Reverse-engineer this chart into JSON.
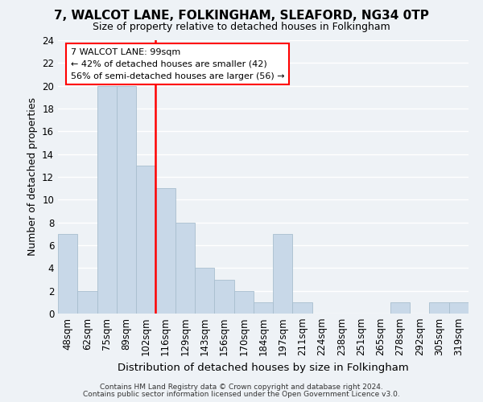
{
  "title": "7, WALCOT LANE, FOLKINGHAM, SLEAFORD, NG34 0TP",
  "subtitle": "Size of property relative to detached houses in Folkingham",
  "xlabel": "Distribution of detached houses by size in Folkingham",
  "ylabel": "Number of detached properties",
  "bar_color": "#c8d8e8",
  "bar_edge_color": "#a8bece",
  "vline_color": "red",
  "bin_labels": [
    "48sqm",
    "62sqm",
    "75sqm",
    "89sqm",
    "102sqm",
    "116sqm",
    "129sqm",
    "143sqm",
    "156sqm",
    "170sqm",
    "184sqm",
    "197sqm",
    "211sqm",
    "224sqm",
    "238sqm",
    "251sqm",
    "265sqm",
    "278sqm",
    "292sqm",
    "305sqm",
    "319sqm"
  ],
  "bar_values": [
    7,
    2,
    20,
    20,
    13,
    11,
    8,
    4,
    3,
    2,
    1,
    7,
    1,
    0,
    0,
    0,
    0,
    1,
    0,
    1,
    1
  ],
  "vline_index": 4,
  "ylim": [
    0,
    24
  ],
  "yticks": [
    0,
    2,
    4,
    6,
    8,
    10,
    12,
    14,
    16,
    18,
    20,
    22,
    24
  ],
  "annotation_title": "7 WALCOT LANE: 99sqm",
  "annotation_line1": "← 42% of detached houses are smaller (42)",
  "annotation_line2": "56% of semi-detached houses are larger (56) →",
  "annotation_box_color": "white",
  "annotation_box_edge": "red",
  "footer1": "Contains HM Land Registry data © Crown copyright and database right 2024.",
  "footer2": "Contains public sector information licensed under the Open Government Licence v3.0.",
  "background_color": "#eef2f6",
  "grid_color": "white"
}
